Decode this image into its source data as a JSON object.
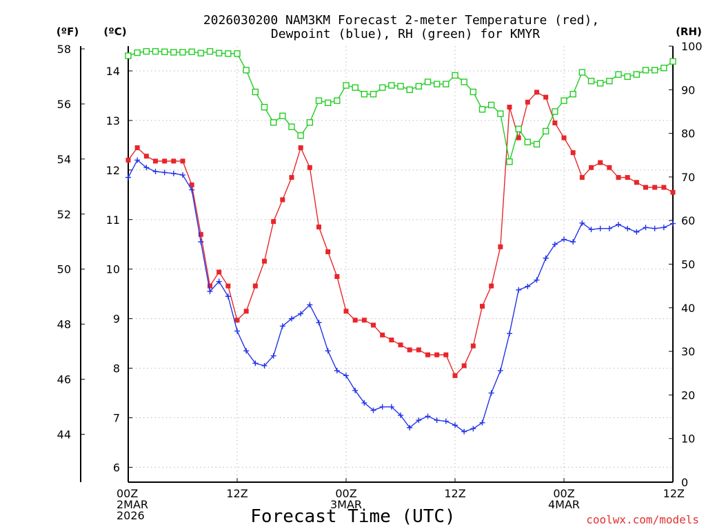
{
  "chart_data": {
    "type": "line",
    "title_line1": "2026030200 NAM3KM Forecast 2-meter Temperature (red),",
    "title_line2": "Dewpoint (blue), RH (green) for KMYR",
    "xlabel": "Forecast Time (UTC)",
    "credit": "coolwx.com/models",
    "unit_f": "(ºF)",
    "unit_c": "(ºC)",
    "unit_rh": "(RH)",
    "x_hours_range": [
      0,
      60
    ],
    "x_ticks": [
      {
        "hour": 0,
        "l1": "00Z",
        "l2": "2MAR",
        "l3": "2026"
      },
      {
        "hour": 12,
        "l1": "12Z",
        "l2": "",
        "l3": ""
      },
      {
        "hour": 24,
        "l1": "00Z",
        "l2": "3MAR",
        "l3": ""
      },
      {
        "hour": 36,
        "l1": "12Z",
        "l2": "",
        "l3": ""
      },
      {
        "hour": 48,
        "l1": "00Z",
        "l2": "4MAR",
        "l3": ""
      },
      {
        "hour": 60,
        "l1": "12Z",
        "l2": "",
        "l3": ""
      }
    ],
    "ylim_c": [
      5.7,
      14.5
    ],
    "yticks_c": [
      6,
      7,
      8,
      9,
      10,
      11,
      12,
      13,
      14
    ],
    "yticks_f": [
      44,
      46,
      48,
      50,
      52,
      54,
      56,
      58
    ],
    "ylim_rh": [
      0,
      100
    ],
    "yticks_rh": [
      0,
      10,
      20,
      30,
      40,
      50,
      60,
      70,
      80,
      90,
      100
    ],
    "hours": [
      0,
      1,
      2,
      3,
      4,
      5,
      6,
      7,
      8,
      9,
      10,
      11,
      12,
      13,
      14,
      15,
      16,
      17,
      18,
      19,
      20,
      21,
      22,
      23,
      24,
      25,
      26,
      27,
      28,
      29,
      30,
      31,
      32,
      33,
      34,
      35,
      36,
      37,
      38,
      39,
      40,
      41,
      42,
      43,
      44,
      45,
      46,
      47,
      48,
      49,
      50,
      51,
      52,
      53,
      54,
      55,
      56,
      57,
      58,
      59,
      60
    ],
    "series": [
      {
        "name": "2-meter Temperature (ºC)",
        "color": "#e8262a",
        "marker": "square-filled",
        "axis": "celsius",
        "values": [
          12.2,
          12.45,
          12.28,
          12.18,
          12.18,
          12.18,
          12.18,
          11.7,
          10.7,
          9.66,
          9.94,
          9.66,
          8.97,
          9.15,
          9.66,
          10.16,
          10.96,
          11.4,
          11.85,
          12.45,
          12.05,
          10.85,
          10.35,
          9.85,
          9.15,
          8.97,
          8.97,
          8.87,
          8.67,
          8.57,
          8.47,
          8.37,
          8.37,
          8.27,
          8.27,
          8.27,
          7.85,
          8.05,
          8.45,
          9.25,
          9.66,
          10.45,
          13.27,
          12.65,
          13.37,
          13.57,
          13.47,
          12.95,
          12.65,
          12.35,
          11.85,
          12.05,
          12.15,
          12.05,
          11.85,
          11.85,
          11.75,
          11.65,
          11.65,
          11.65,
          11.55
        ]
      },
      {
        "name": "Dewpoint (ºC)",
        "color": "#2233e8",
        "marker": "plus",
        "axis": "celsius",
        "values": [
          11.85,
          12.2,
          12.05,
          11.97,
          11.95,
          11.93,
          11.9,
          11.6,
          10.55,
          9.55,
          9.75,
          9.45,
          8.75,
          8.35,
          8.1,
          8.05,
          8.25,
          8.85,
          9.0,
          9.1,
          9.28,
          8.92,
          8.35,
          7.95,
          7.85,
          7.55,
          7.3,
          7.15,
          7.22,
          7.22,
          7.05,
          6.8,
          6.95,
          7.03,
          6.95,
          6.93,
          6.85,
          6.72,
          6.78,
          6.9,
          7.5,
          7.95,
          8.7,
          9.58,
          9.65,
          9.78,
          10.22,
          10.5,
          10.6,
          10.55,
          10.93,
          10.8,
          10.82,
          10.82,
          10.9,
          10.82,
          10.75,
          10.84,
          10.82,
          10.84,
          10.92
        ]
      },
      {
        "name": "RH (%)",
        "color": "#22cc22",
        "marker": "square-open",
        "axis": "rh",
        "values": [
          97.8,
          98.5,
          98.8,
          98.8,
          98.7,
          98.6,
          98.6,
          98.7,
          98.4,
          98.8,
          98.4,
          98.3,
          98.3,
          94.5,
          89.5,
          86.0,
          82.5,
          84.0,
          81.5,
          79.5,
          82.5,
          87.5,
          87.0,
          87.5,
          91.0,
          90.5,
          89.0,
          89.0,
          90.5,
          91.0,
          90.8,
          90.0,
          90.8,
          91.8,
          91.3,
          91.3,
          93.3,
          91.8,
          89.5,
          85.5,
          86.5,
          84.5,
          73.5,
          81.0,
          78.0,
          77.5,
          80.5,
          85.0,
          87.5,
          89.0,
          94.0,
          92.0,
          91.5,
          92.0,
          93.5,
          93.0,
          93.5,
          94.5,
          94.5,
          95.0,
          96.5
        ]
      }
    ]
  }
}
